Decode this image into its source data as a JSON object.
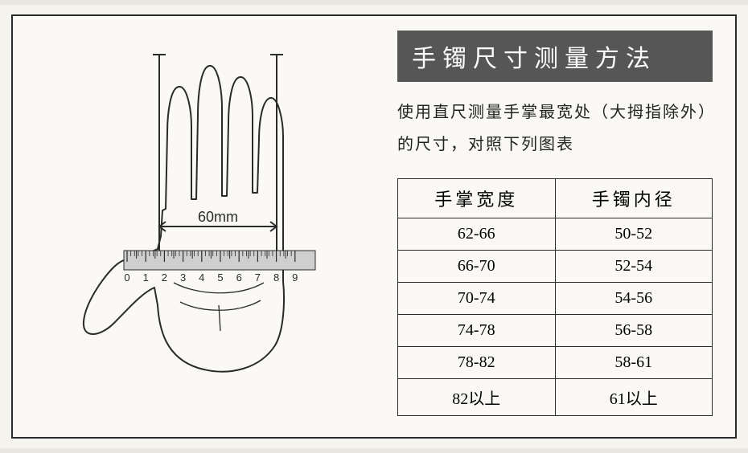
{
  "title": "手镯尺寸测量方法",
  "description": "使用直尺测量手掌最宽处（大拇指除外）的尺寸，对照下列图表",
  "diagram": {
    "measurement_label": "60mm",
    "ruler_numbers": [
      "0",
      "1",
      "2",
      "3",
      "4",
      "5",
      "6",
      "7",
      "8",
      "9"
    ],
    "stroke_color": "#2a2a2a",
    "ruler_fill": "#cfcfcf"
  },
  "table": {
    "headers": [
      "手掌宽度",
      "手镯内径"
    ],
    "rows": [
      [
        "62-66",
        "50-52"
      ],
      [
        "66-70",
        "52-54"
      ],
      [
        "70-74",
        "54-56"
      ],
      [
        "74-78",
        "56-58"
      ],
      [
        "78-82",
        "58-61"
      ],
      [
        "82以上",
        "61以上"
      ]
    ]
  },
  "colors": {
    "page_bg": "#f5f3ee",
    "frame_bg": "#faf9f5",
    "frame_border": "#2a2a2a",
    "title_bg": "#565656",
    "title_fg": "#ffffff",
    "text": "#222222"
  }
}
